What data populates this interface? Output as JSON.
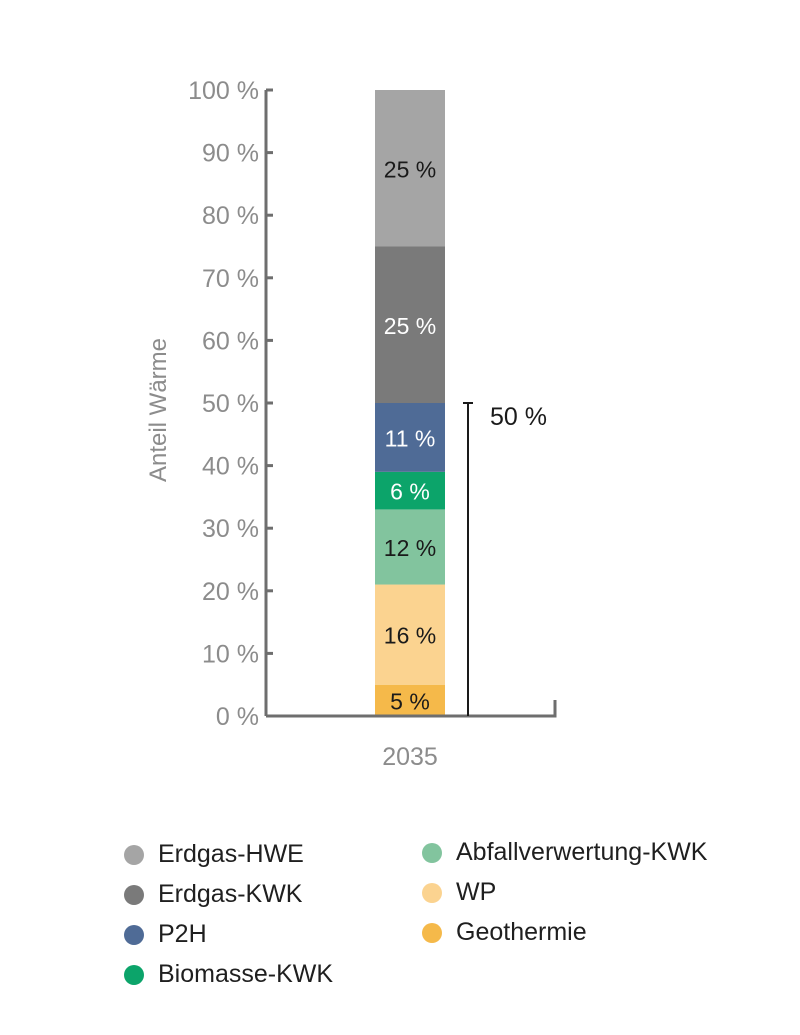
{
  "chart_data": {
    "type": "bar",
    "stacked": true,
    "categories": [
      "2035"
    ],
    "series": [
      {
        "name": "Geothermie",
        "values": [
          5
        ],
        "label": "5 %",
        "color": "#f5b94a",
        "label_color": "#1a1a1a"
      },
      {
        "name": "WP",
        "values": [
          16
        ],
        "label": "16 %",
        "color": "#fbd390",
        "label_color": "#1a1a1a"
      },
      {
        "name": "Abfallverwertung-KWK",
        "values": [
          12
        ],
        "label": "12 %",
        "color": "#82c49e",
        "label_color": "#1a1a1a"
      },
      {
        "name": "Biomasse-KWK",
        "values": [
          6
        ],
        "label": "6 %",
        "color": "#0ca46a",
        "label_color": "#ffffff"
      },
      {
        "name": "P2H",
        "values": [
          11
        ],
        "label": "11 %",
        "color": "#4f6b96",
        "label_color": "#ffffff"
      },
      {
        "name": "Erdgas-KWK",
        "values": [
          25
        ],
        "label": "25 %",
        "color": "#7a7a7a",
        "label_color": "#ffffff"
      },
      {
        "name": "Erdgas-HWE",
        "values": [
          25
        ],
        "label": "25 %",
        "color": "#a5a5a5",
        "label_color": "#1a1a1a"
      }
    ],
    "ylabel": "Anteil Wärme",
    "xlabel": "",
    "ylim": [
      0,
      100
    ],
    "yticks": [
      {
        "value": 0,
        "label": "0 %"
      },
      {
        "value": 10,
        "label": "10 %"
      },
      {
        "value": 20,
        "label": "20 %"
      },
      {
        "value": 30,
        "label": "30 %"
      },
      {
        "value": 40,
        "label": "40 %"
      },
      {
        "value": 50,
        "label": "50 %"
      },
      {
        "value": 60,
        "label": "60 %"
      },
      {
        "value": 70,
        "label": "70 %"
      },
      {
        "value": 80,
        "label": "80 %"
      },
      {
        "value": 90,
        "label": "90 %"
      },
      {
        "value": 100,
        "label": "100 %"
      }
    ],
    "annotation": {
      "from": 0,
      "to": 50,
      "label": "50 %"
    },
    "grid": false,
    "legend_position": "bottom"
  },
  "legend": {
    "items": [
      {
        "label": "Erdgas-HWE",
        "color": "#a5a5a5"
      },
      {
        "label": "Erdgas-KWK",
        "color": "#7a7a7a"
      },
      {
        "label": "P2H",
        "color": "#4f6b96"
      },
      {
        "label": "Biomasse-KWK",
        "color": "#0ca46a"
      },
      {
        "label": "Abfallverwertung-KWK",
        "color": "#82c49e"
      },
      {
        "label": "WP",
        "color": "#fbd390"
      },
      {
        "label": "Geothermie",
        "color": "#f5b94a"
      }
    ]
  },
  "colors": {
    "axis": "#6e6e6e",
    "text_muted": "#8c8c8c"
  }
}
